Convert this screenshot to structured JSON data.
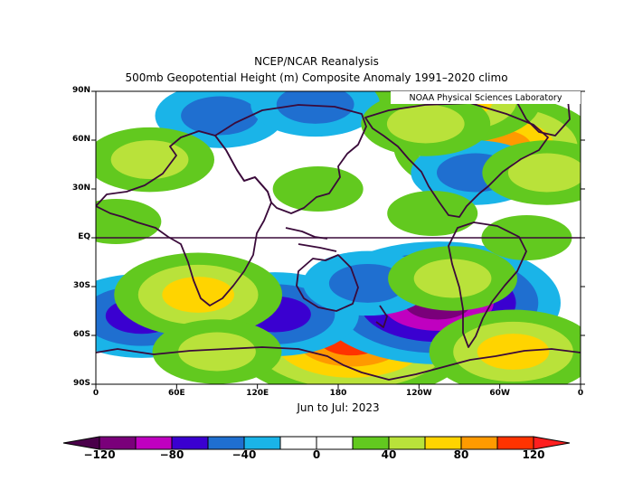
{
  "title_line1": "NCEP/NCAR Reanalysis",
  "title_line2": "500mb Geopotential Height (m) Composite Anomaly 1991–2020 climo",
  "credit": "NOAA Physical Sciences Laboratory",
  "period": "Jun to Jul: 2023",
  "chart_data": {
    "type": "heatmap",
    "variable": "500mb Geopotential Height (m) Composite Anomaly",
    "climatology": "1991-2020",
    "period": "Jun to Jul: 2023",
    "xlim": [
      0,
      360
    ],
    "ylim": [
      -90,
      90
    ],
    "lat_ticks": [
      "90N",
      "60N",
      "30N",
      "EQ",
      "30S",
      "60S",
      "90S"
    ],
    "lon_ticks": [
      "0",
      "60E",
      "120E",
      "180",
      "120W",
      "60W",
      "0"
    ],
    "colorbar": {
      "labels": [
        "−120",
        "−80",
        "−40",
        "0",
        "40",
        "80",
        "120"
      ],
      "levels": [
        -120,
        -100,
        -80,
        -60,
        -40,
        -20,
        0,
        20,
        40,
        60,
        80,
        100,
        120
      ],
      "colors": [
        "#7a007a",
        "#c000c0",
        "#3a00d0",
        "#1f6fd0",
        "#1ab4e8",
        "#ffffff",
        "#ffffff",
        "#62c91f",
        "#b9e23a",
        "#ffd400",
        "#ff9a00",
        "#ff3300",
        "#ff1f1f"
      ]
    },
    "features": [
      {
        "type": "max",
        "lon": 190,
        "lat": -62,
        "value": 100
      },
      {
        "type": "min",
        "lon": 254,
        "lat": -40,
        "value": -100
      },
      {
        "type": "max",
        "lon": 298,
        "lat": 56,
        "value": 80
      },
      {
        "type": "max",
        "lon": 268,
        "lat": 84,
        "value": 60
      },
      {
        "type": "min",
        "lon": 34,
        "lat": -48,
        "value": -60
      },
      {
        "type": "min",
        "lon": 133,
        "lat": -47,
        "value": -60
      },
      {
        "type": "min",
        "lon": 92,
        "lat": 75,
        "value": -40
      },
      {
        "type": "min",
        "lon": 163,
        "lat": 82,
        "value": -40
      },
      {
        "type": "min",
        "lon": 202,
        "lat": -28,
        "value": -40
      },
      {
        "type": "min",
        "lon": 282,
        "lat": 40,
        "value": -40
      },
      {
        "type": "max",
        "lon": 40,
        "lat": 48,
        "value": 40
      },
      {
        "type": "max",
        "lon": 76,
        "lat": -35,
        "value": 60
      },
      {
        "type": "max",
        "lon": 310,
        "lat": -70,
        "value": 60
      },
      {
        "type": "max",
        "lon": 335,
        "lat": 40,
        "value": 40
      },
      {
        "type": "max",
        "lon": 265,
        "lat": -25,
        "value": 40
      },
      {
        "type": "max",
        "lon": 90,
        "lat": -70,
        "value": 40
      },
      {
        "type": "max",
        "lon": 245,
        "lat": 70,
        "value": 40
      },
      {
        "type": "max",
        "lon": 15,
        "lat": 10,
        "value": 20
      },
      {
        "type": "max",
        "lon": 320,
        "lat": 0,
        "value": 20
      },
      {
        "type": "max",
        "lon": 250,
        "lat": 15,
        "value": 20
      },
      {
        "type": "max",
        "lon": 165,
        "lat": 30,
        "value": 20
      }
    ]
  }
}
